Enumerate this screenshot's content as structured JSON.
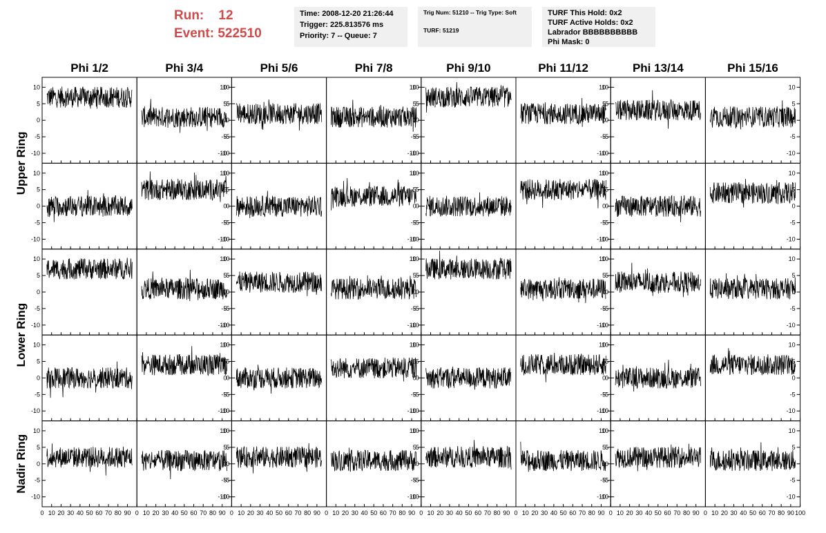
{
  "header": {
    "run_label": "Run:",
    "run_value": "12",
    "event_label": "Event:",
    "event_value": "522510",
    "time": "Time: 2008-12-20 21:26:44",
    "trigger": "Trigger: 225.813576 ms",
    "priority": "Priority: 7 -- Queue: 7",
    "trig_num": "Trig Num: 51210 -- Trig Type: Soft",
    "turf": "TURF: 51219",
    "turf_this_hold": "TURF This Hold: 0x2",
    "turf_active_holds": "TURF Active Holds: 0x2",
    "labrador": "Labrador BBBBBBBBBB",
    "phi_mask": "Phi Mask: 0"
  },
  "chart_data": {
    "type": "line",
    "columns": [
      "Phi 1/2",
      "Phi 3/4",
      "Phi 5/6",
      "Phi 7/8",
      "Phi 9/10",
      "Phi 11/12",
      "Phi 13/14",
      "Phi 15/16"
    ],
    "ring_labels": [
      "Upper Ring",
      "Lower Ring",
      "Nadir Ring"
    ],
    "rows_per_ring": [
      2,
      2,
      1
    ],
    "xlim": [
      0,
      100
    ],
    "ylim": [
      -13,
      13
    ],
    "yticks": [
      10,
      5,
      0,
      -5,
      -10
    ],
    "xtick_labels": [
      "0",
      "10",
      "20",
      "30",
      "40",
      "50",
      "60",
      "70",
      "80",
      "90",
      "100"
    ],
    "baselines": [
      [
        7,
        1,
        2,
        1,
        7,
        2,
        3,
        1
      ],
      [
        0,
        5,
        0,
        3,
        0,
        5,
        0,
        4
      ],
      [
        7,
        1,
        3,
        1,
        7,
        1,
        3,
        1
      ],
      [
        0,
        4,
        0,
        3,
        0,
        4,
        0,
        4
      ],
      [
        2,
        1,
        2,
        1,
        2,
        1,
        2,
        1
      ]
    ],
    "noise": 3.2
  }
}
